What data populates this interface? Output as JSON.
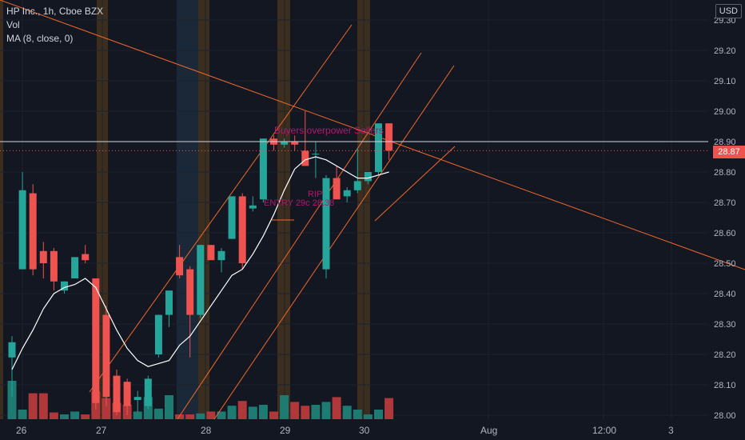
{
  "legend": {
    "symbol_line": "HP Inc., 1h, Cboe BZX",
    "vol_label": "Vol",
    "ma_label": "MA (8, close, 0)"
  },
  "currency": "USD",
  "last_price_label": "28.87",
  "colors": {
    "up": "#26a69a",
    "down": "#ef5350",
    "ma": "#ffffff",
    "trendline": "#f0682a",
    "annotation": "#b01870",
    "vol_up": "#1e7b72",
    "vol_down": "#b0383a",
    "grid": "#1e222d",
    "session_orange": "#3b2e1e",
    "session_blue": "#1a2838"
  },
  "chart_data": {
    "type": "candlestick",
    "ylim": [
      28.0,
      29.33
    ],
    "y_ticks": [
      "29.30",
      "29.20",
      "29.10",
      "29.00",
      "28.90",
      "28.80",
      "28.70",
      "28.60",
      "28.50",
      "28.40",
      "28.30",
      "28.20",
      "28.10",
      "28.00"
    ],
    "x_ticks": [
      "26",
      "27",
      "28",
      "29",
      "30",
      "Aug",
      "12:00",
      "3"
    ],
    "horizontal_line": 28.9,
    "last_price": 28.87,
    "candles": [
      {
        "o": 28.19,
        "h": 28.26,
        "l": 28.06,
        "c": 28.24
      },
      {
        "o": 28.48,
        "h": 28.8,
        "l": 28.48,
        "c": 28.74
      },
      {
        "o": 28.73,
        "h": 28.76,
        "l": 28.46,
        "c": 28.48
      },
      {
        "o": 28.54,
        "h": 28.57,
        "l": 28.45,
        "c": 28.5
      },
      {
        "o": 28.54,
        "h": 28.55,
        "l": 28.41,
        "c": 28.44
      },
      {
        "o": 28.41,
        "h": 28.44,
        "l": 28.4,
        "c": 28.44
      },
      {
        "o": 28.45,
        "h": 28.52,
        "l": 28.45,
        "c": 28.52
      },
      {
        "o": 28.53,
        "h": 28.56,
        "l": 28.5,
        "c": 28.51
      },
      {
        "o": 28.45,
        "h": 28.45,
        "l": 28.02,
        "c": 28.04
      },
      {
        "o": 28.33,
        "h": 28.36,
        "l": 28.03,
        "c": 28.06
      },
      {
        "o": 28.13,
        "h": 28.15,
        "l": 28.0,
        "c": 28.01
      },
      {
        "o": 28.11,
        "h": 28.12,
        "l": 28.0,
        "c": 28.03
      },
      {
        "o": 28.05,
        "h": 28.08,
        "l": 28.01,
        "c": 28.06
      },
      {
        "o": 28.03,
        "h": 28.13,
        "l": 28.02,
        "c": 28.12
      },
      {
        "o": 28.2,
        "h": 28.33,
        "l": 28.19,
        "c": 28.33
      },
      {
        "o": 28.33,
        "h": 28.41,
        "l": 28.29,
        "c": 28.41
      },
      {
        "o": 28.52,
        "h": 28.56,
        "l": 28.45,
        "c": 28.46
      },
      {
        "o": 28.48,
        "h": 28.49,
        "l": 28.19,
        "c": 28.33
      },
      {
        "o": 28.33,
        "h": 28.56,
        "l": 28.32,
        "c": 28.56
      },
      {
        "o": 28.56,
        "h": 28.56,
        "l": 28.51,
        "c": 28.51
      },
      {
        "o": 28.51,
        "h": 28.55,
        "l": 28.47,
        "c": 28.54
      },
      {
        "o": 28.58,
        "h": 28.72,
        "l": 28.58,
        "c": 28.72
      },
      {
        "o": 28.72,
        "h": 28.73,
        "l": 28.48,
        "c": 28.5
      },
      {
        "o": 28.68,
        "h": 28.72,
        "l": 28.67,
        "c": 28.69
      },
      {
        "o": 28.71,
        "h": 28.91,
        "l": 28.7,
        "c": 28.91
      },
      {
        "o": 28.91,
        "h": 28.92,
        "l": 28.87,
        "c": 28.89
      },
      {
        "o": 28.89,
        "h": 28.91,
        "l": 28.88,
        "c": 28.9
      },
      {
        "o": 28.9,
        "h": 28.92,
        "l": 28.87,
        "c": 28.89
      },
      {
        "o": 28.87,
        "h": 29.0,
        "l": 28.82,
        "c": 28.82
      },
      {
        "o": 28.86,
        "h": 28.9,
        "l": 28.78,
        "c": 28.86
      },
      {
        "o": 28.48,
        "h": 28.79,
        "l": 28.45,
        "c": 28.78
      },
      {
        "o": 28.78,
        "h": 28.82,
        "l": 28.71,
        "c": 28.71
      },
      {
        "o": 28.72,
        "h": 28.75,
        "l": 28.7,
        "c": 28.74
      },
      {
        "o": 28.74,
        "h": 28.88,
        "l": 28.73,
        "c": 28.77
      },
      {
        "o": 28.77,
        "h": 28.8,
        "l": 28.76,
        "c": 28.8
      },
      {
        "o": 28.8,
        "h": 28.96,
        "l": 28.79,
        "c": 28.96
      },
      {
        "o": 28.96,
        "h": 28.96,
        "l": 28.84,
        "c": 28.87
      }
    ],
    "ma": [
      28.15,
      28.22,
      28.28,
      28.35,
      28.4,
      28.42,
      28.43,
      28.45,
      28.42,
      28.35,
      28.28,
      28.22,
      28.18,
      28.16,
      28.17,
      28.18,
      28.23,
      28.26,
      28.31,
      28.36,
      28.41,
      28.46,
      28.48,
      28.53,
      28.59,
      28.66,
      28.74,
      28.81,
      28.84,
      28.85,
      28.84,
      28.82,
      28.8,
      28.78,
      28.78,
      28.79,
      28.8
    ],
    "volume": [
      80,
      20,
      54,
      54,
      14,
      10,
      16,
      10,
      58,
      44,
      34,
      30,
      16,
      46,
      22,
      50,
      10,
      10,
      12,
      16,
      16,
      28,
      38,
      26,
      30,
      16,
      50,
      36,
      28,
      30,
      36,
      46,
      28,
      20,
      10,
      20,
      44
    ]
  },
  "annotations": {
    "text1": "Buyers overpower Sellers",
    "text2": "RIP",
    "text3": "ENTRY 29c 28.38"
  }
}
